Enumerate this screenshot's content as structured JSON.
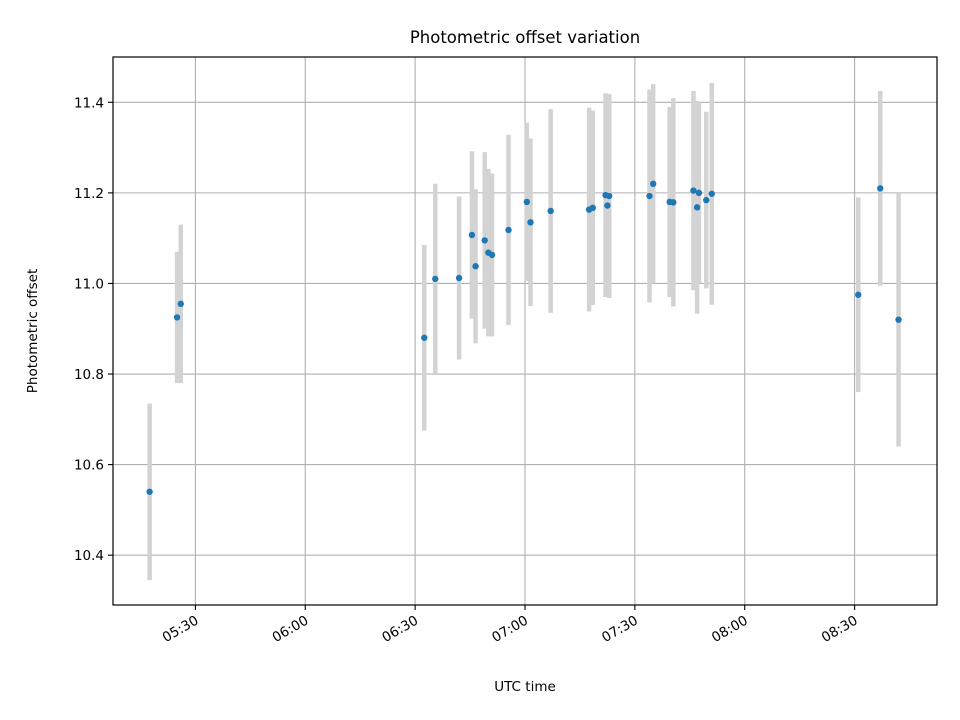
{
  "chart_data": {
    "type": "scatter",
    "title": "Photometric offset variation",
    "xlabel": "UTC time",
    "ylabel": "Photometric offset",
    "xlim": [
      "05:07:30",
      "08:52:30"
    ],
    "ylim": [
      10.29,
      11.5
    ],
    "x_ticks": [
      "05:30",
      "06:00",
      "06:30",
      "07:00",
      "07:30",
      "08:00",
      "08:30"
    ],
    "y_ticks": [
      "10.4",
      "10.6",
      "10.8",
      "11.0",
      "11.2",
      "11.4"
    ],
    "grid": true,
    "colors": {
      "point": "#1f77b4",
      "errorbar": "#d3d3d3",
      "grid": "#b0b0b0",
      "axis": "#000000"
    },
    "points": [
      {
        "x": "05:17:30",
        "y": 10.54,
        "err": 0.195
      },
      {
        "x": "05:25:00",
        "y": 10.925,
        "err": 0.145
      },
      {
        "x": "05:26:00",
        "y": 10.955,
        "err": 0.175
      },
      {
        "x": "06:32:30",
        "y": 10.88,
        "err": 0.205
      },
      {
        "x": "06:35:30",
        "y": 11.01,
        "err": 0.21
      },
      {
        "x": "06:42:00",
        "y": 11.012,
        "err": 0.18
      },
      {
        "x": "06:45:30",
        "y": 11.107,
        "err": 0.185
      },
      {
        "x": "06:46:30",
        "y": 11.038,
        "err": 0.17
      },
      {
        "x": "06:49:00",
        "y": 11.095,
        "err": 0.195
      },
      {
        "x": "06:50:00",
        "y": 11.068,
        "err": 0.185
      },
      {
        "x": "06:51:00",
        "y": 11.063,
        "err": 0.18
      },
      {
        "x": "06:55:30",
        "y": 11.118,
        "err": 0.21
      },
      {
        "x": "07:00:30",
        "y": 11.18,
        "err": 0.175
      },
      {
        "x": "07:01:30",
        "y": 11.135,
        "err": 0.185
      },
      {
        "x": "07:07:00",
        "y": 11.16,
        "err": 0.225
      },
      {
        "x": "07:17:30",
        "y": 11.163,
        "err": 0.225
      },
      {
        "x": "07:18:30",
        "y": 11.167,
        "err": 0.215
      },
      {
        "x": "07:22:00",
        "y": 11.195,
        "err": 0.225
      },
      {
        "x": "07:22:30",
        "y": 11.172,
        "err": 0.2
      },
      {
        "x": "07:23:00",
        "y": 11.193,
        "err": 0.225
      },
      {
        "x": "07:34:00",
        "y": 11.193,
        "err": 0.235
      },
      {
        "x": "07:35:00",
        "y": 11.22,
        "err": 0.22
      },
      {
        "x": "07:39:30",
        "y": 11.18,
        "err": 0.21
      },
      {
        "x": "07:40:30",
        "y": 11.179,
        "err": 0.23
      },
      {
        "x": "07:46:00",
        "y": 11.205,
        "err": 0.22
      },
      {
        "x": "07:47:00",
        "y": 11.168,
        "err": 0.235
      },
      {
        "x": "07:47:30",
        "y": 11.2,
        "err": 0.2
      },
      {
        "x": "07:49:30",
        "y": 11.184,
        "err": 0.195
      },
      {
        "x": "07:51:00",
        "y": 11.198,
        "err": 0.245
      },
      {
        "x": "08:31:00",
        "y": 10.975,
        "err": 0.215
      },
      {
        "x": "08:37:00",
        "y": 11.21,
        "err": 0.215
      },
      {
        "x": "08:42:00",
        "y": 10.92,
        "err": 0.28
      }
    ]
  }
}
